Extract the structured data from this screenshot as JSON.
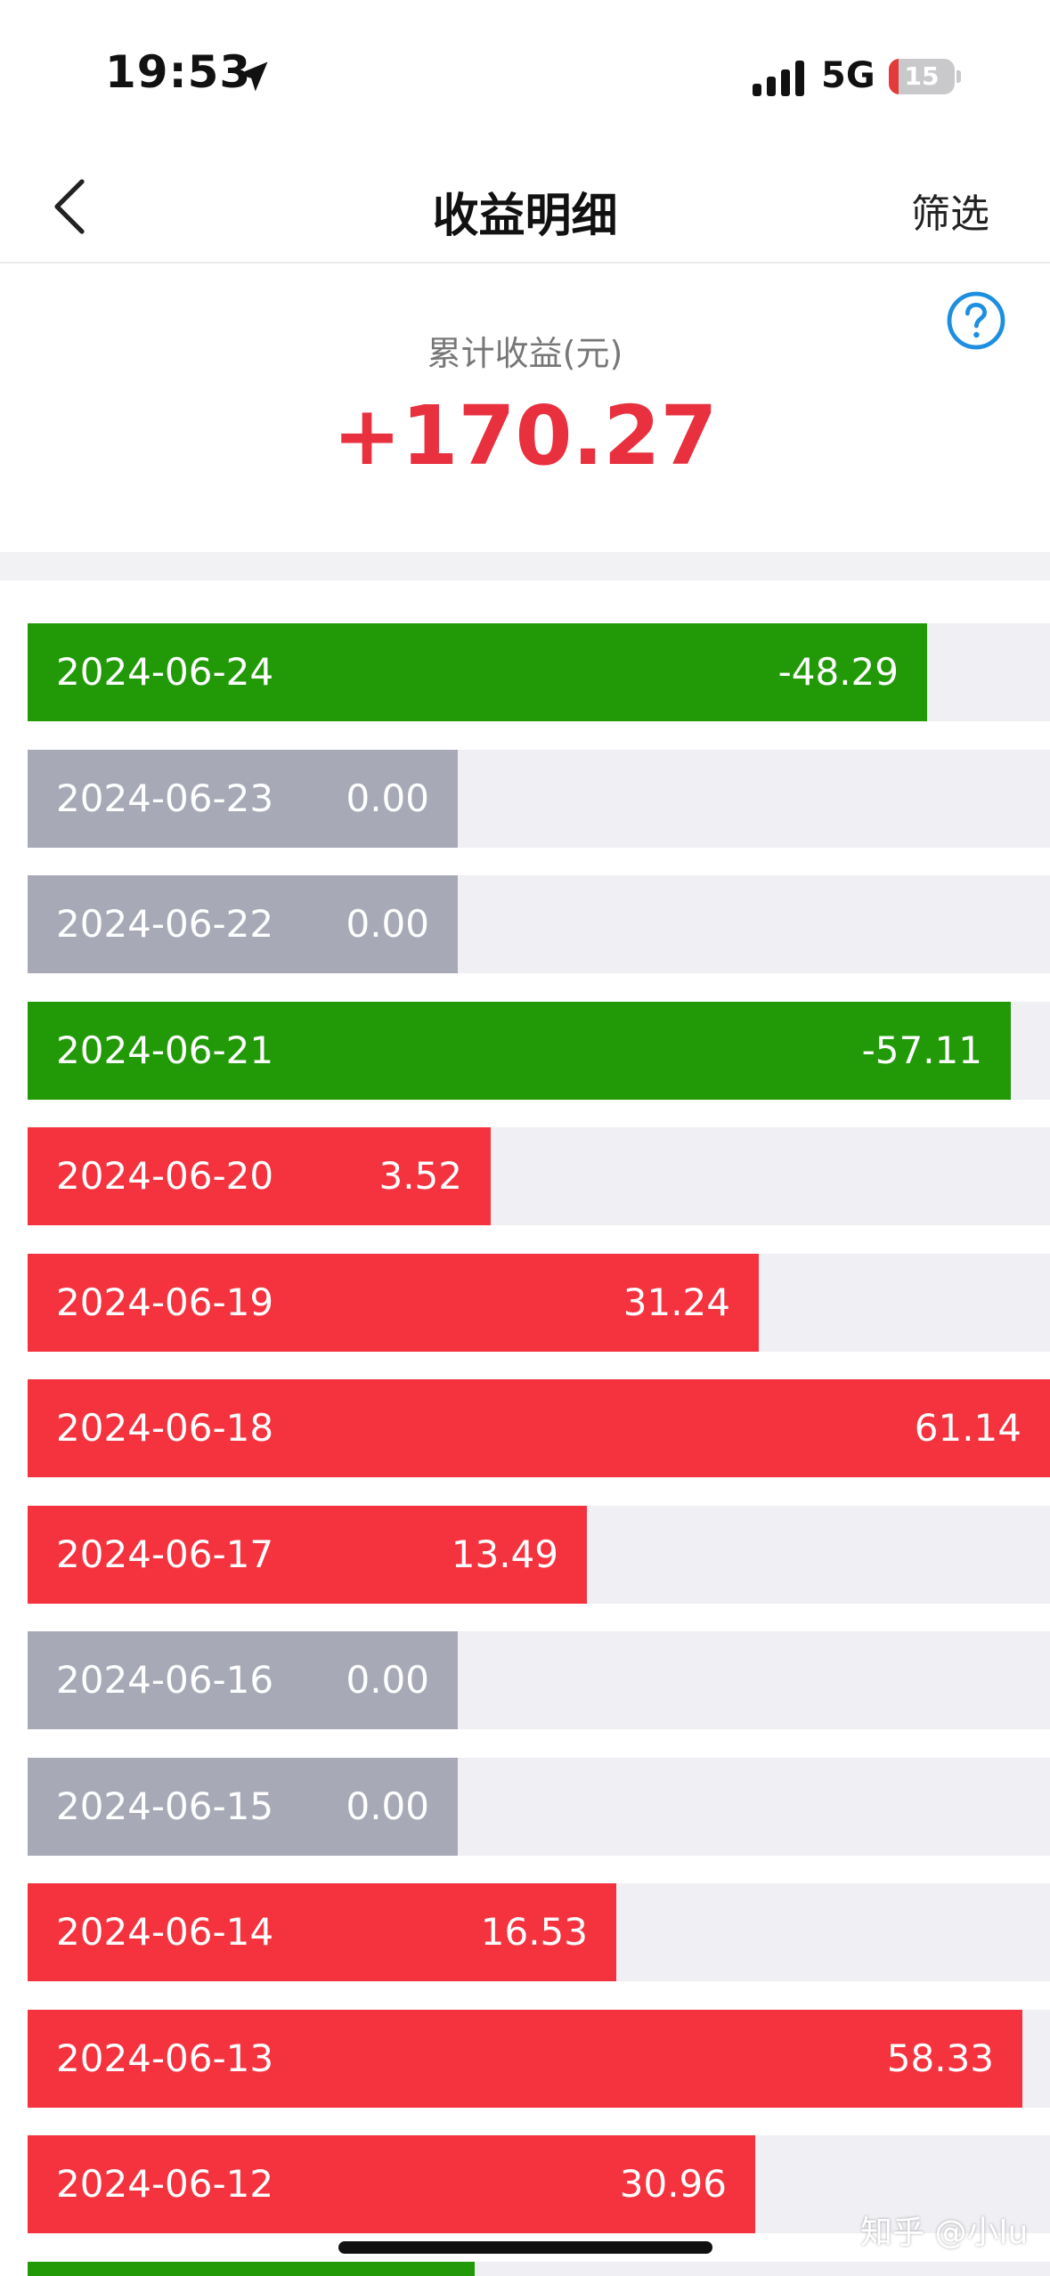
{
  "status_bar": {
    "time": "19:53",
    "network": "5G",
    "battery": "15",
    "battery_fraction": 0.15,
    "location_icon": "location-arrow-icon",
    "signal_icon": "cellular-signal-icon"
  },
  "nav": {
    "title": "收益明细",
    "filter_label": "筛选",
    "back_icon": "chevron-left-icon"
  },
  "summary": {
    "label": "累计收益(元)",
    "value": "+170.27",
    "help_icon": "question-circle-icon"
  },
  "colors": {
    "positive": "#f5333f",
    "negative": "#229a08",
    "zero": "#a7aab6",
    "track": "#f0f0f4",
    "accent": "#e8303e",
    "help": "#1e8fe0"
  },
  "daily_returns": [
    {
      "date": "2024-06-24",
      "value": "-48.29",
      "amount": -48.29,
      "fill": 0.88
    },
    {
      "date": "2024-06-23",
      "value": "0.00",
      "amount": 0.0,
      "fill": 0.421
    },
    {
      "date": "2024-06-22",
      "value": "0.00",
      "amount": 0.0,
      "fill": 0.421
    },
    {
      "date": "2024-06-21",
      "value": "-57.11",
      "amount": -57.11,
      "fill": 0.962
    },
    {
      "date": "2024-06-20",
      "value": "3.52",
      "amount": 3.52,
      "fill": 0.453
    },
    {
      "date": "2024-06-19",
      "value": "31.24",
      "amount": 31.24,
      "fill": 0.715
    },
    {
      "date": "2024-06-18",
      "value": "61.14",
      "amount": 61.14,
      "fill": 1.0
    },
    {
      "date": "2024-06-17",
      "value": "13.49",
      "amount": 13.49,
      "fill": 0.547
    },
    {
      "date": "2024-06-16",
      "value": "0.00",
      "amount": 0.0,
      "fill": 0.421
    },
    {
      "date": "2024-06-15",
      "value": "0.00",
      "amount": 0.0,
      "fill": 0.421
    },
    {
      "date": "2024-06-14",
      "value": "16.53",
      "amount": 16.53,
      "fill": 0.576
    },
    {
      "date": "2024-06-13",
      "value": "58.33",
      "amount": 58.33,
      "fill": 0.973
    },
    {
      "date": "2024-06-12",
      "value": "30.96",
      "amount": 30.96,
      "fill": 0.712
    },
    {
      "date": "",
      "value": "",
      "amount": -1,
      "fill": 0.437
    }
  ],
  "watermark": "知乎 @小lu"
}
